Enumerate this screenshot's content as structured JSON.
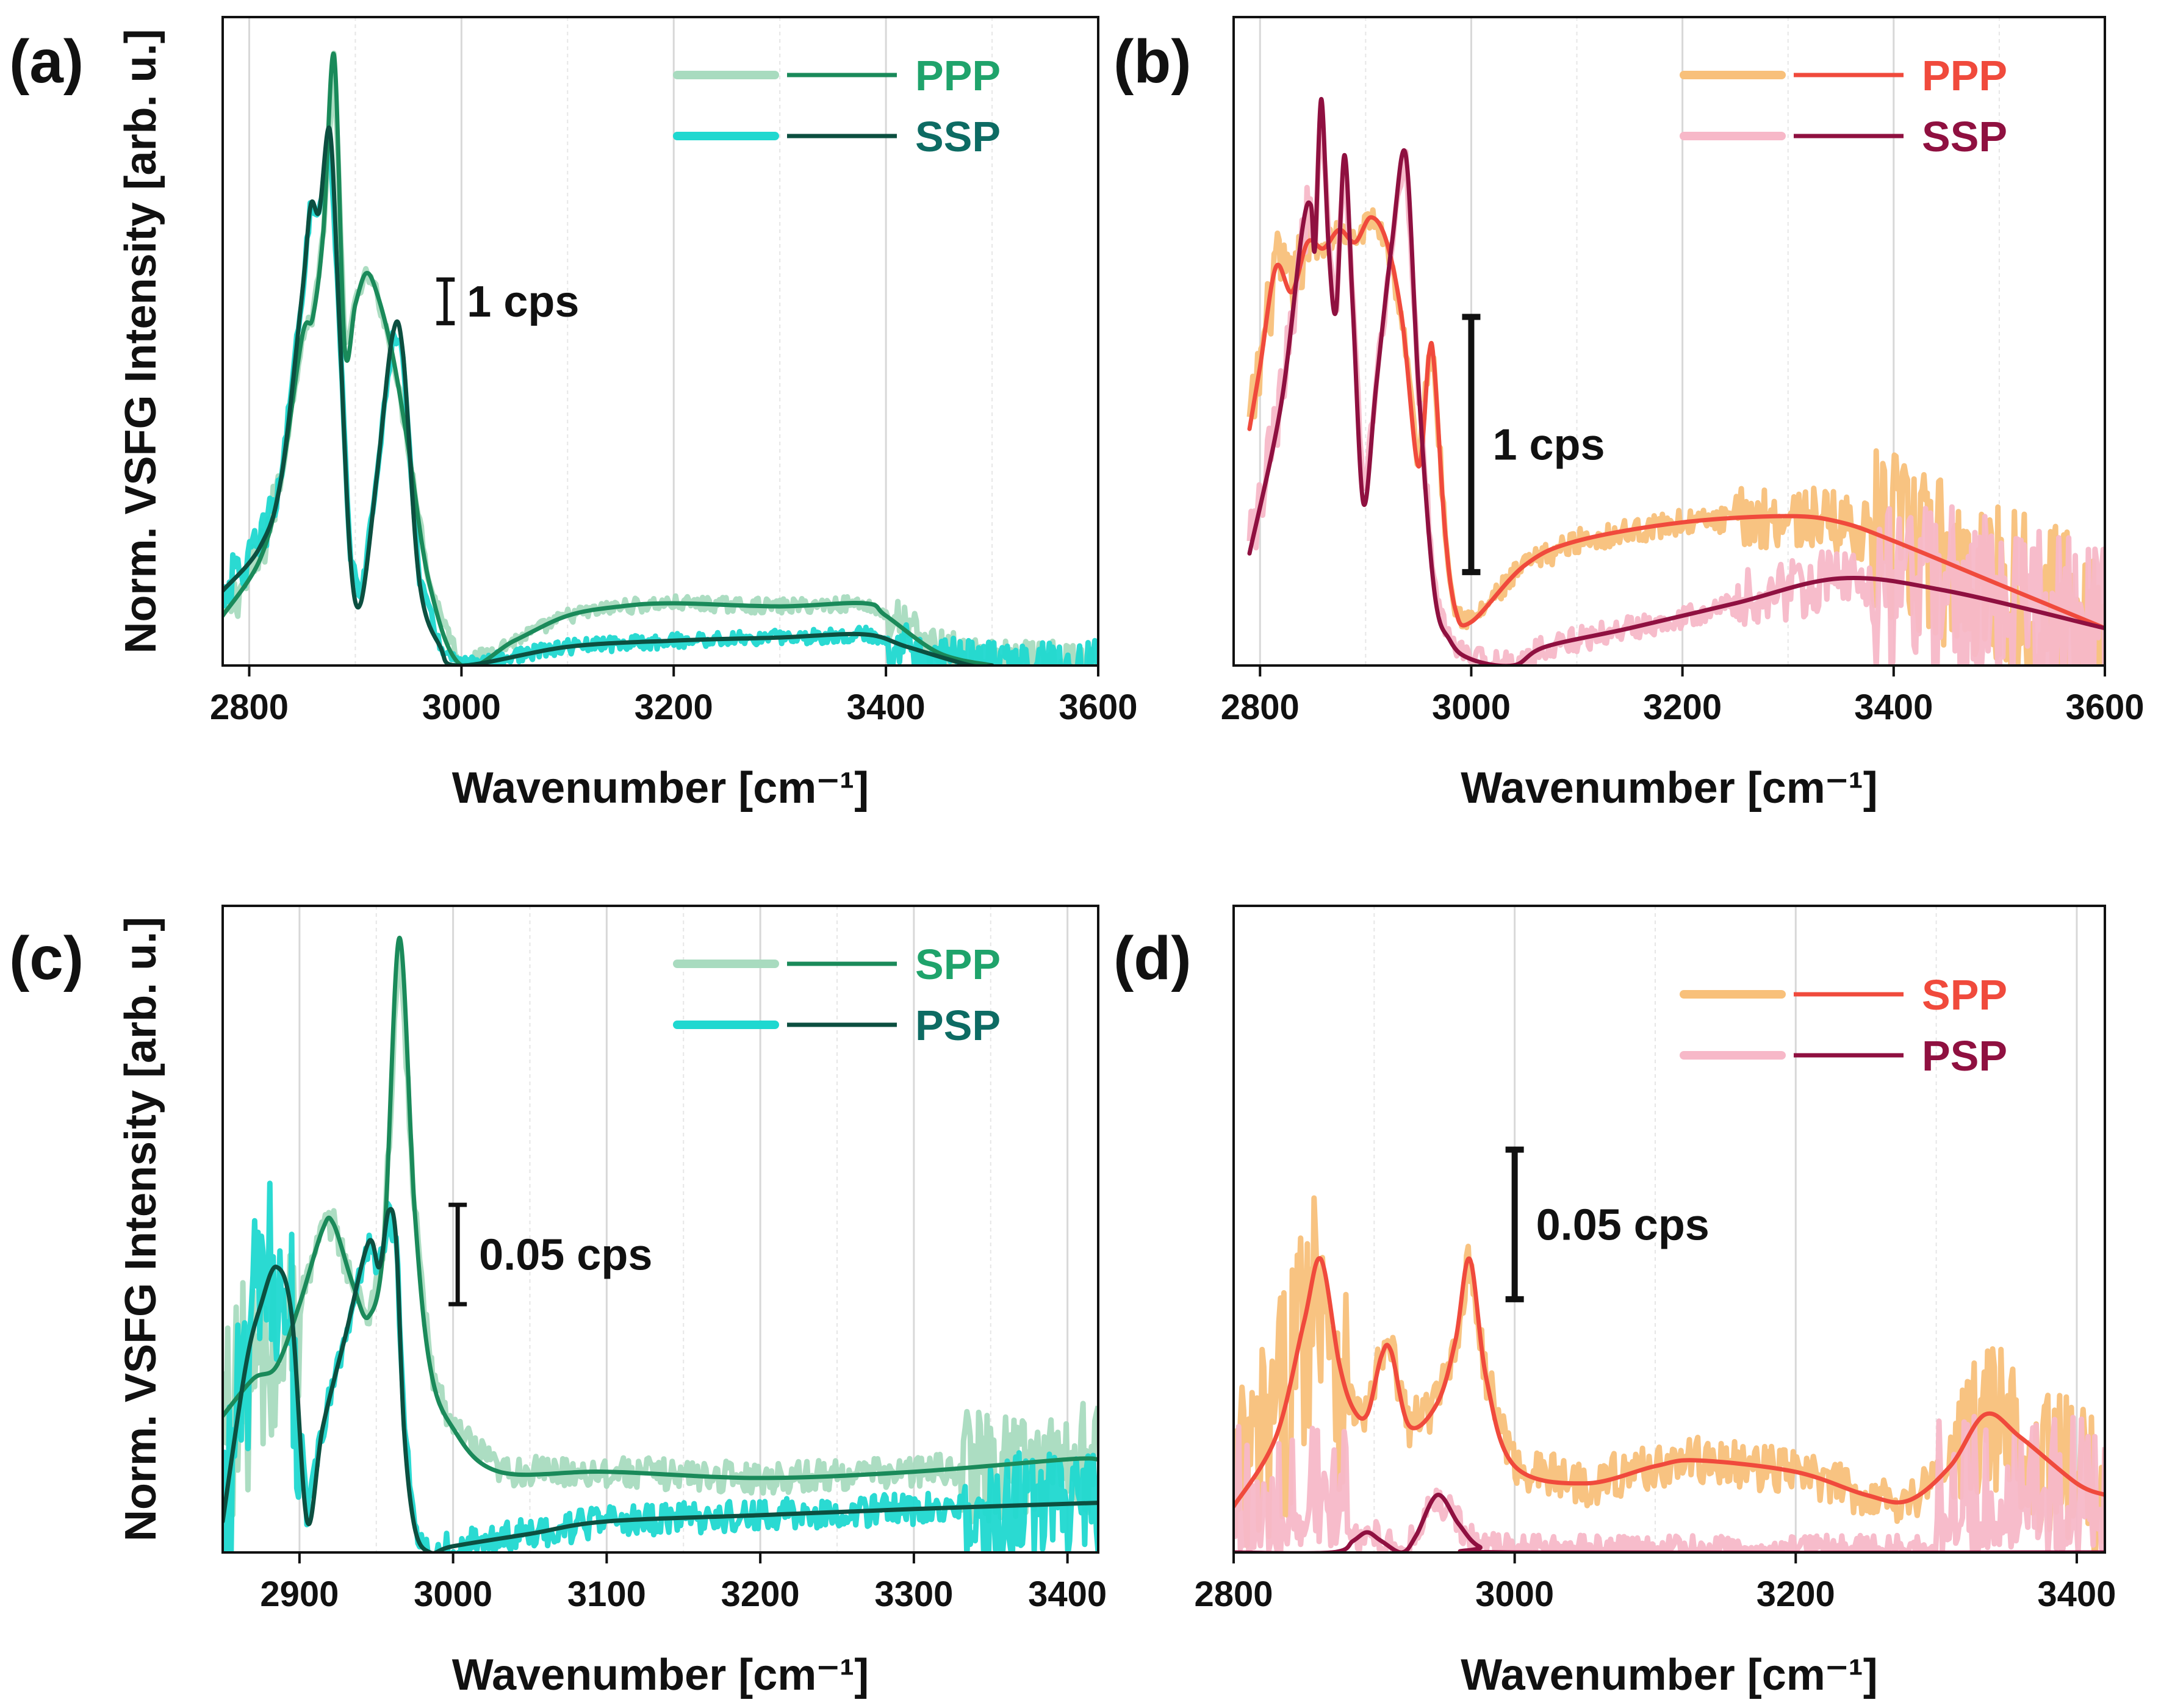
{
  "figure": {
    "ylabel": "Norm. VSFG Intensity [arb. u.]",
    "xlabel": "Wavenumber [cm⁻¹]"
  },
  "chart_data": [
    {
      "panel": "(a)",
      "type": "line",
      "xlim": [
        2775,
        3600
      ],
      "xticks": [
        2800,
        3000,
        3200,
        3400,
        3600
      ],
      "ylim": [
        0,
        1
      ],
      "xlabel": "Wavenumber [cm⁻¹]",
      "ylabel": "Norm. VSFG Intensity [arb. u.]",
      "scale_bar": {
        "label": "1 cps",
        "x": 2985,
        "y_low": 0.55,
        "y_high": 0.62
      },
      "legend": [
        {
          "label": "PPP",
          "raw_color": "#a8dbbf",
          "fit_color": "#1a8a5a",
          "text_color": "#1fa36b"
        },
        {
          "label": "SSP",
          "raw_color": "#1fd8d0",
          "fit_color": "#0c4f40",
          "text_color": "#0d6b63"
        }
      ],
      "series": [
        {
          "name": "PPP",
          "role": "fit",
          "color": "#1a8a5a",
          "x": [
            2775,
            2810,
            2830,
            2850,
            2860,
            2870,
            2880,
            2890,
            2900,
            2910,
            2920,
            2935,
            2950,
            2970,
            3000,
            3050,
            3100,
            3150,
            3200,
            3300,
            3380,
            3400,
            3450,
            3500
          ],
          "y": [
            0.08,
            0.17,
            0.3,
            0.53,
            0.56,
            0.7,
            0.98,
            0.51,
            0.58,
            0.63,
            0.6,
            0.5,
            0.35,
            0.13,
            0.0,
            0.04,
            0.08,
            0.095,
            0.1,
            0.095,
            0.1,
            0.08,
            0.02,
            0.0
          ]
        },
        {
          "name": "SSP",
          "role": "fit",
          "color": "#0c4f40",
          "x": [
            2775,
            2810,
            2830,
            2850,
            2858,
            2866,
            2876,
            2885,
            2895,
            2905,
            2920,
            2935,
            2945,
            2960,
            2980,
            3000,
            3100,
            3200,
            3300,
            3380,
            3420,
            3480,
            3500
          ],
          "y": [
            0.12,
            0.19,
            0.3,
            0.6,
            0.74,
            0.73,
            0.86,
            0.55,
            0.18,
            0.1,
            0.3,
            0.53,
            0.5,
            0.14,
            0.03,
            0.0,
            0.03,
            0.04,
            0.045,
            0.05,
            0.03,
            0.0,
            0.0
          ]
        }
      ]
    },
    {
      "panel": "(b)",
      "type": "line",
      "xlim": [
        2775,
        3600
      ],
      "xticks": [
        2800,
        3000,
        3200,
        3400,
        3600
      ],
      "ylim": [
        0,
        1
      ],
      "xlabel": "Wavenumber [cm⁻¹]",
      "ylabel": "",
      "scale_bar": {
        "label": "1 cps",
        "x": 3000,
        "y_low": 0.15,
        "y_high": 0.56
      },
      "legend": [
        {
          "label": "PPP",
          "raw_color": "#f8c07a",
          "fit_color": "#f04a3c",
          "text_color": "#f04a3c"
        },
        {
          "label": "SSP",
          "raw_color": "#f7b8c8",
          "fit_color": "#8f1040",
          "text_color": "#8f1040"
        }
      ],
      "series": [
        {
          "name": "PPP",
          "role": "fit",
          "color": "#f04a3c",
          "x": [
            2790,
            2800,
            2815,
            2830,
            2845,
            2860,
            2875,
            2890,
            2905,
            2920,
            2935,
            2950,
            2960,
            2965,
            2975,
            2985,
            3000,
            3050,
            3100,
            3200,
            3300,
            3350,
            3400,
            3500,
            3600
          ],
          "y": [
            0.38,
            0.48,
            0.64,
            0.6,
            0.68,
            0.67,
            0.7,
            0.68,
            0.72,
            0.68,
            0.55,
            0.32,
            0.5,
            0.48,
            0.22,
            0.09,
            0.07,
            0.16,
            0.2,
            0.23,
            0.24,
            0.23,
            0.2,
            0.13,
            0.06
          ]
        },
        {
          "name": "SSP",
          "role": "fit",
          "color": "#8f1040",
          "x": [
            2790,
            2820,
            2840,
            2848,
            2852,
            2858,
            2865,
            2872,
            2880,
            2888,
            2898,
            2910,
            2925,
            2938,
            2950,
            2965,
            2980,
            3000,
            3040,
            3070,
            3150,
            3250,
            3350,
            3450,
            3600
          ],
          "y": [
            0.18,
            0.42,
            0.7,
            0.74,
            0.67,
            0.91,
            0.67,
            0.57,
            0.82,
            0.57,
            0.26,
            0.45,
            0.68,
            0.82,
            0.45,
            0.12,
            0.04,
            0.01,
            0.0,
            0.03,
            0.06,
            0.1,
            0.14,
            0.12,
            0.06
          ]
        }
      ]
    },
    {
      "panel": "(c)",
      "type": "line",
      "xlim": [
        2850,
        3420
      ],
      "xticks": [
        2900,
        3000,
        3100,
        3200,
        3300,
        3400
      ],
      "ylim": [
        0,
        1
      ],
      "xlabel": "Wavenumber [cm⁻¹]",
      "ylabel": "Norm. VSFG Intensity [arb. u.]",
      "scale_bar": {
        "label": "0.05 cps",
        "x": 3003,
        "y_low": 0.4,
        "y_high": 0.56
      },
      "legend": [
        {
          "label": "SPP",
          "raw_color": "#a8dbbf",
          "fit_color": "#1a8a5a",
          "text_color": "#1fa36b"
        },
        {
          "label": "PSP",
          "raw_color": "#1fd8d0",
          "fit_color": "#0c4f40",
          "text_color": "#0d6b63"
        }
      ],
      "series": [
        {
          "name": "SPP",
          "role": "fit",
          "color": "#1a8a5a",
          "x": [
            2850,
            2870,
            2885,
            2900,
            2915,
            2922,
            2935,
            2945,
            2955,
            2965,
            2975,
            2985,
            3000,
            3030,
            3100,
            3200,
            3300,
            3400,
            3420
          ],
          "y": [
            0.22,
            0.28,
            0.3,
            0.4,
            0.52,
            0.53,
            0.43,
            0.38,
            0.5,
            0.99,
            0.55,
            0.3,
            0.2,
            0.13,
            0.13,
            0.12,
            0.13,
            0.15,
            0.15
          ]
        },
        {
          "name": "PSP",
          "role": "fit",
          "color": "#0c4f40",
          "x": [
            2850,
            2865,
            2875,
            2885,
            2895,
            2905,
            2915,
            2930,
            2945,
            2952,
            2958,
            2963,
            2968,
            2975,
            2985,
            3000,
            3050,
            3100,
            3200,
            3300,
            3420
          ],
          "y": [
            0.05,
            0.3,
            0.4,
            0.46,
            0.38,
            0.05,
            0.2,
            0.35,
            0.5,
            0.46,
            0.55,
            0.5,
            0.2,
            0.04,
            0.0,
            0.01,
            0.03,
            0.05,
            0.06,
            0.07,
            0.08
          ]
        }
      ]
    },
    {
      "panel": "(d)",
      "type": "line",
      "xlim": [
        2800,
        3420
      ],
      "xticks": [
        2800,
        3000,
        3200,
        3400
      ],
      "ylim": [
        0,
        1
      ],
      "xlabel": "Wavenumber [cm⁻¹]",
      "ylabel": "",
      "scale_bar": {
        "label": "0.05 cps",
        "x": 3000,
        "y_low": 0.44,
        "y_high": 0.7
      },
      "legend": [
        {
          "label": "SPP",
          "raw_color": "#f8c07a",
          "fit_color": "#f04a3c",
          "text_color": "#f04a3c"
        },
        {
          "label": "PSP",
          "raw_color": "#f7b8c8",
          "fit_color": "#8f1040",
          "text_color": "#8f1040"
        }
      ],
      "series": [
        {
          "name": "SPP",
          "role": "fit",
          "color": "#f04a3c",
          "x": [
            2800,
            2830,
            2850,
            2862,
            2875,
            2885,
            2895,
            2905,
            2912,
            2925,
            2945,
            2958,
            2968,
            2980,
            3000,
            3050,
            3100,
            3130,
            3200,
            3250,
            3280,
            3310,
            3335,
            3360,
            3400,
            3420
          ],
          "y": [
            0.08,
            0.2,
            0.4,
            0.51,
            0.33,
            0.25,
            0.24,
            0.34,
            0.35,
            0.22,
            0.26,
            0.37,
            0.51,
            0.3,
            0.15,
            0.12,
            0.15,
            0.16,
            0.14,
            0.1,
            0.09,
            0.15,
            0.24,
            0.2,
            0.12,
            0.1
          ]
        },
        {
          "name": "PSP",
          "role": "fit",
          "color": "#8f1040",
          "x": [
            2800,
            2870,
            2885,
            2895,
            2905,
            2920,
            2930,
            2945,
            2960,
            2975,
            3000,
            3420
          ],
          "y": [
            0.0,
            0.0,
            0.02,
            0.035,
            0.02,
            0.0,
            0.03,
            0.1,
            0.05,
            0.01,
            0.0,
            0.0
          ]
        }
      ]
    }
  ]
}
